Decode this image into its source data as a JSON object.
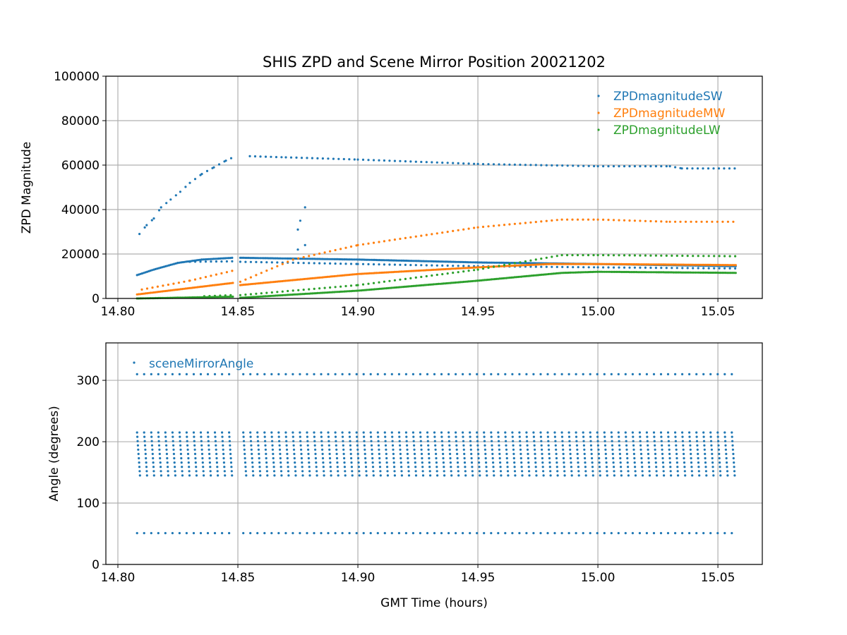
{
  "chart_data": [
    {
      "type": "scatter",
      "title": "SHIS ZPD and Scene Mirror Position 20021202",
      "xlabel": "",
      "ylabel": "ZPD Magnitude",
      "xlim": [
        14.795,
        15.0685
      ],
      "ylim": [
        0,
        100000
      ],
      "grid": true,
      "legend_position": "top-right",
      "xticks": [
        "14.80",
        "14.85",
        "14.90",
        "14.95",
        "15.00",
        "15.05"
      ],
      "xtick_values": [
        14.8,
        14.85,
        14.9,
        14.95,
        15.0,
        15.05
      ],
      "yticks": [
        "0",
        "20000",
        "40000",
        "60000",
        "80000",
        "100000"
      ],
      "ytick_values": [
        0,
        20000,
        40000,
        60000,
        80000,
        100000
      ],
      "series": [
        {
          "name": "ZPDmagnitudeSW",
          "color": "#1f77b4",
          "branches": [
            {
              "step": 0.0022,
              "points": [
                [
                  14.809,
                  29000
                ],
                [
                  14.812,
                  33000
                ],
                [
                  14.815,
                  36000
                ],
                [
                  14.818,
                  41000
                ],
                [
                  14.822,
                  44500
                ],
                [
                  14.826,
                  48000
                ],
                [
                  14.83,
                  52000
                ],
                [
                  14.835,
                  56000
                ],
                [
                  14.84,
                  59000
                ],
                [
                  14.845,
                  62000
                ],
                [
                  14.848,
                  63500
                ],
                [
                  14.855,
                  64000
                ],
                [
                  14.87,
                  63500
                ],
                [
                  14.9,
                  62500
                ],
                [
                  14.95,
                  60500
                ],
                [
                  15.0,
                  59500
                ],
                [
                  15.03,
                  59500
                ],
                [
                  15.035,
                  58500
                ],
                [
                  15.058,
                  58500
                ]
              ]
            },
            {
              "step": 0.0007,
              "points": [
                [
                  14.808,
                  10500
                ],
                [
                  14.815,
                  13000
                ],
                [
                  14.825,
                  16000
                ],
                [
                  14.835,
                  17500
                ],
                [
                  14.848,
                  18300
                ],
                [
                  14.851,
                  18300
                ],
                [
                  14.9,
                  17500
                ],
                [
                  14.95,
                  16200
                ],
                [
                  15.0,
                  15500
                ],
                [
                  15.058,
                  14500
                ]
              ]
            },
            {
              "step": 0.0022,
              "points": [
                [
                  14.83,
                  16500
                ],
                [
                  14.848,
                  16700
                ],
                [
                  14.851,
                  16500
                ],
                [
                  14.9,
                  15500
                ],
                [
                  14.95,
                  14500
                ],
                [
                  15.0,
                  14000
                ],
                [
                  15.058,
                  13500
                ]
              ]
            },
            {
              "step": 0,
              "points": [
                [
                  14.875,
                  22000
                ],
                [
                  14.875,
                  31000
                ],
                [
                  14.876,
                  35000
                ],
                [
                  14.878,
                  24000
                ],
                [
                  14.878,
                  41000
                ]
              ]
            }
          ]
        },
        {
          "name": "ZPDmagnitudeMW",
          "color": "#ff7f0e",
          "branches": [
            {
              "step": 0.0022,
              "points": [
                [
                  14.81,
                  4000
                ],
                [
                  14.83,
                  8000
                ],
                [
                  14.848,
                  12500
                ]
              ]
            },
            {
              "step": 0.0022,
              "points": [
                [
                  14.851,
                  7500
                ],
                [
                  14.873,
                  17500
                ],
                [
                  14.9,
                  24000
                ],
                [
                  14.95,
                  32000
                ],
                [
                  14.985,
                  35500
                ],
                [
                  15.0,
                  35500
                ],
                [
                  15.03,
                  34500
                ],
                [
                  15.058,
                  34500
                ]
              ]
            },
            {
              "step": 0.0007,
              "points": [
                [
                  14.808,
                  1800
                ],
                [
                  14.848,
                  7000
                ],
                [
                  14.851,
                  6000
                ],
                [
                  14.9,
                  11000
                ],
                [
                  14.95,
                  14000
                ],
                [
                  14.98,
                  15500
                ],
                [
                  15.0,
                  15500
                ],
                [
                  15.058,
                  15000
                ]
              ]
            }
          ]
        },
        {
          "name": "ZPDmagnitudeLW",
          "color": "#2ca02c",
          "branches": [
            {
              "step": 0.0007,
              "points": [
                [
                  14.808,
                  0
                ],
                [
                  14.848,
                  800
                ],
                [
                  14.851,
                  300
                ],
                [
                  14.9,
                  3500
                ],
                [
                  14.95,
                  8000
                ],
                [
                  14.985,
                  11500
                ],
                [
                  15.0,
                  12000
                ],
                [
                  15.058,
                  11500
                ]
              ]
            },
            {
              "step": 0.0022,
              "points": [
                [
                  14.836,
                  1000
                ],
                [
                  14.848,
                  1500
                ],
                [
                  14.851,
                  1500
                ],
                [
                  14.9,
                  6000
                ],
                [
                  14.95,
                  13000
                ],
                [
                  14.985,
                  19500
                ],
                [
                  15.0,
                  19500
                ],
                [
                  15.058,
                  19000
                ]
              ]
            }
          ]
        }
      ]
    },
    {
      "type": "scatter",
      "title": "",
      "xlabel": "GMT Time (hours)",
      "ylabel": "Angle (degrees)",
      "xlim": [
        14.795,
        15.0685
      ],
      "ylim": [
        0,
        361
      ],
      "grid": true,
      "legend_position": "top-left",
      "xticks": [
        "14.80",
        "14.85",
        "14.90",
        "14.95",
        "15.00",
        "15.05"
      ],
      "xtick_values": [
        14.8,
        14.85,
        14.9,
        14.95,
        15.0,
        15.05
      ],
      "yticks": [
        "0",
        "100",
        "200",
        "300"
      ],
      "ytick_values": [
        0,
        100,
        200,
        300
      ],
      "series": [
        {
          "name": "sceneMirrorAngle",
          "color": "#1f77b4",
          "scan": {
            "start": 14.808,
            "end": 15.058,
            "period": 0.00295,
            "gap": [
              14.8485,
              14.8508
            ],
            "fixed_angles": [
              310,
              51
            ],
            "scene_min": 145,
            "scene_max": 215,
            "scene_step": 7
          }
        }
      ]
    }
  ]
}
